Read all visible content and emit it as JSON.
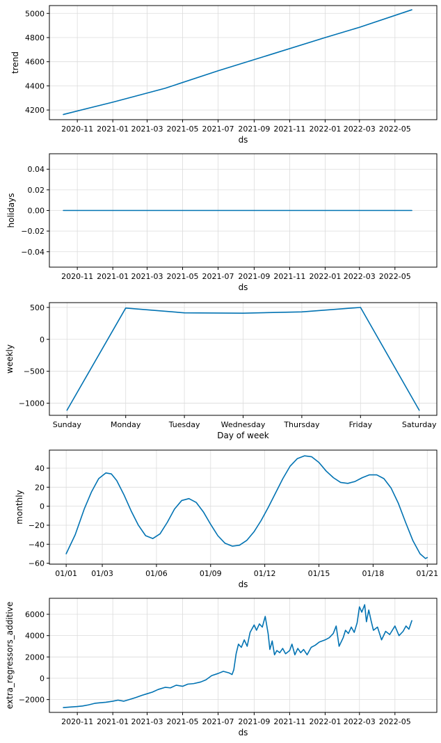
{
  "chart_data": [
    {
      "type": "line",
      "xlabel": "ds",
      "ylabel": "trend",
      "x_type": "date",
      "xlim": [
        "2020-09-14",
        "2022-07-12"
      ],
      "ylim": [
        4120,
        5065
      ],
      "grid": true,
      "color": "#0072B2",
      "xticks": [
        "2020-11",
        "2021-01",
        "2021-03",
        "2021-05",
        "2021-07",
        "2021-09",
        "2021-11",
        "2022-01",
        "2022-03",
        "2022-05"
      ],
      "yticks": [
        4200,
        4400,
        4600,
        4800,
        5000
      ],
      "ytick_labels": [
        "4200",
        "4400",
        "4600",
        "4800",
        "5000"
      ],
      "series": [
        {
          "x": [
            "2020-10-08",
            "2021-01-01",
            "2021-04-01",
            "2021-07-01",
            "2021-10-01",
            "2022-01-01",
            "2022-03-01",
            "2022-05-30"
          ],
          "y": [
            4163,
            4265,
            4380,
            4525,
            4662,
            4800,
            4885,
            5030
          ]
        }
      ]
    },
    {
      "type": "line",
      "xlabel": "ds",
      "ylabel": "holidays",
      "x_type": "date",
      "xlim": [
        "2020-09-14",
        "2022-07-12"
      ],
      "ylim": [
        -0.055,
        0.055
      ],
      "grid": true,
      "color": "#0072B2",
      "xticks": [
        "2020-11",
        "2021-01",
        "2021-03",
        "2021-05",
        "2021-07",
        "2021-09",
        "2021-11",
        "2022-01",
        "2022-03",
        "2022-05"
      ],
      "yticks": [
        -0.04,
        -0.02,
        0.0,
        0.02,
        0.04
      ],
      "ytick_labels": [
        "−0.04",
        "−0.02",
        "0.00",
        "0.02",
        "0.04"
      ],
      "series": [
        {
          "x": [
            "2020-10-08",
            "2022-05-30"
          ],
          "y": [
            0,
            0
          ]
        }
      ]
    },
    {
      "type": "line",
      "xlabel": "Day of week",
      "ylabel": "weekly",
      "x_type": "category",
      "categories": [
        "Sunday",
        "Monday",
        "Tuesday",
        "Wednesday",
        "Thursday",
        "Friday",
        "Saturday"
      ],
      "xlim": [
        -0.3,
        6.3
      ],
      "ylim": [
        -1190,
        575
      ],
      "grid": true,
      "color": "#0072B2",
      "yticks": [
        -1000,
        -500,
        0,
        500
      ],
      "ytick_labels": [
        "−1000",
        "−500",
        "0",
        "500"
      ],
      "series": [
        {
          "values": [
            -1110,
            490,
            415,
            410,
            430,
            500,
            -1110
          ]
        }
      ]
    },
    {
      "type": "line",
      "xlabel": "ds",
      "ylabel": "monthly",
      "x_type": "day",
      "xlim": [
        -0.93,
        20.53
      ],
      "ylim": [
        -61,
        59
      ],
      "grid": true,
      "color": "#0072B2",
      "xticks": [
        0,
        2,
        5,
        8,
        11,
        14,
        17,
        20
      ],
      "xtick_labels": [
        "01/01",
        "01/03",
        "01/06",
        "01/09",
        "01/12",
        "01/15",
        "01/18",
        "01/21"
      ],
      "yticks": [
        -60,
        -40,
        -20,
        0,
        20,
        40
      ],
      "ytick_labels": [
        "−60",
        "−40",
        "−20",
        "0",
        "20",
        "40"
      ],
      "series": [
        {
          "x": [
            0,
            0.5,
            1,
            1.4,
            1.8,
            2.2,
            2.5,
            2.8,
            3.2,
            3.6,
            4,
            4.4,
            4.8,
            5.2,
            5.6,
            6,
            6.4,
            6.8,
            7.2,
            7.6,
            8,
            8.4,
            8.8,
            9.2,
            9.6,
            10,
            10.4,
            10.8,
            11.2,
            11.6,
            12,
            12.4,
            12.8,
            13.2,
            13.6,
            14,
            14.4,
            14.8,
            15.2,
            15.6,
            16,
            16.4,
            16.8,
            17.2,
            17.6,
            18,
            18.4,
            18.8,
            19.2,
            19.6,
            19.9,
            20
          ],
          "y": [
            -50,
            -30,
            -3,
            15,
            29,
            35,
            34,
            27,
            12,
            -5,
            -20,
            -31,
            -34,
            -29,
            -17,
            -3,
            6,
            8,
            4,
            -6,
            -19,
            -31,
            -39,
            -42,
            -41,
            -36,
            -27,
            -15,
            -1,
            14,
            29,
            42,
            50,
            53,
            52,
            46,
            37,
            30,
            25,
            24,
            26,
            30,
            33,
            33,
            29,
            19,
            3,
            -17,
            -36,
            -50,
            -55,
            -54
          ]
        }
      ]
    },
    {
      "type": "line",
      "xlabel": "ds",
      "ylabel": "extra_regressors_additive",
      "x_type": "date",
      "xlim": [
        "2020-09-14",
        "2022-07-12"
      ],
      "ylim": [
        -3200,
        7500
      ],
      "grid": true,
      "color": "#0072B2",
      "xticks": [
        "2020-11",
        "2021-01",
        "2021-03",
        "2021-05",
        "2021-07",
        "2021-09",
        "2021-11",
        "2022-01",
        "2022-03",
        "2022-05"
      ],
      "yticks": [
        -2000,
        0,
        2000,
        4000,
        6000
      ],
      "ytick_labels": [
        "−2000",
        "0",
        "2000",
        "4000",
        "6000"
      ],
      "series": [
        {
          "x": [
            "2020-10-08",
            "2020-10-20",
            "2020-11-01",
            "2020-11-10",
            "2020-11-20",
            "2020-12-01",
            "2020-12-10",
            "2020-12-20",
            "2021-01-01",
            "2021-01-10",
            "2021-01-20",
            "2021-02-01",
            "2021-02-10",
            "2021-02-20",
            "2021-03-01",
            "2021-03-10",
            "2021-03-20",
            "2021-04-01",
            "2021-04-10",
            "2021-04-20",
            "2021-05-01",
            "2021-05-10",
            "2021-05-20",
            "2021-06-01",
            "2021-06-10",
            "2021-06-20",
            "2021-07-01",
            "2021-07-10",
            "2021-07-20",
            "2021-07-25",
            "2021-07-28",
            "2021-08-01",
            "2021-08-05",
            "2021-08-10",
            "2021-08-15",
            "2021-08-20",
            "2021-08-25",
            "2021-09-01",
            "2021-09-05",
            "2021-09-10",
            "2021-09-15",
            "2021-09-20",
            "2021-09-25",
            "2021-09-28",
            "2021-10-02",
            "2021-10-06",
            "2021-10-10",
            "2021-10-15",
            "2021-10-20",
            "2021-10-25",
            "2021-11-01",
            "2021-11-05",
            "2021-11-10",
            "2021-11-15",
            "2021-11-20",
            "2021-11-25",
            "2021-12-01",
            "2021-12-08",
            "2021-12-15",
            "2021-12-22",
            "2022-01-01",
            "2022-01-08",
            "2022-01-15",
            "2022-01-20",
            "2022-01-25",
            "2022-02-01",
            "2022-02-05",
            "2022-02-10",
            "2022-02-15",
            "2022-02-20",
            "2022-02-25",
            "2022-03-01",
            "2022-03-05",
            "2022-03-10",
            "2022-03-13",
            "2022-03-17",
            "2022-03-21",
            "2022-03-25",
            "2022-04-01",
            "2022-04-08",
            "2022-04-15",
            "2022-04-22",
            "2022-05-01",
            "2022-05-08",
            "2022-05-15",
            "2022-05-20",
            "2022-05-25",
            "2022-05-30"
          ],
          "y": [
            -2750,
            -2700,
            -2650,
            -2600,
            -2500,
            -2350,
            -2300,
            -2250,
            -2150,
            -2050,
            -2150,
            -1950,
            -1800,
            -1600,
            -1450,
            -1300,
            -1050,
            -850,
            -900,
            -650,
            -750,
            -550,
            -500,
            -350,
            -150,
            250,
            450,
            650,
            500,
            350,
            800,
            2300,
            3200,
            2900,
            3600,
            3000,
            4300,
            5000,
            4500,
            5100,
            4800,
            5800,
            4200,
            2700,
            3500,
            2200,
            2600,
            2400,
            2800,
            2300,
            2600,
            3200,
            2200,
            2800,
            2400,
            2700,
            2200,
            2900,
            3100,
            3400,
            3600,
            3800,
            4200,
            4900,
            3000,
            3800,
            4500,
            4200,
            4800,
            4300,
            5200,
            6700,
            6200,
            6900,
            5300,
            6400,
            5400,
            4500,
            4800,
            3600,
            4400,
            4100,
            4900,
            4000,
            4400,
            4900,
            4600,
            5400
          ]
        }
      ]
    }
  ]
}
